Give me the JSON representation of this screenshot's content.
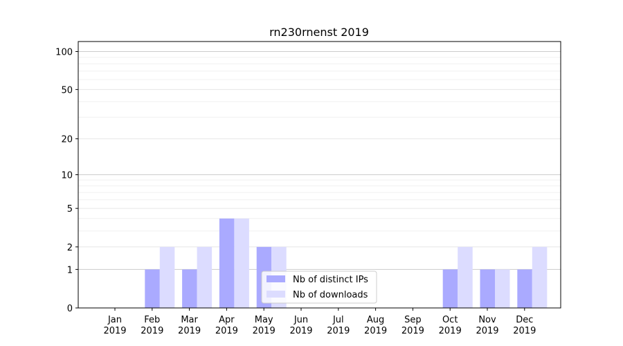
{
  "chart_data": {
    "type": "bar",
    "title": "rn230rnenst 2019",
    "xlabel": "",
    "ylabel": "",
    "yscale": "log1p",
    "ylim": [
      0,
      120
    ],
    "y_ticks": [
      0,
      1,
      2,
      5,
      10,
      20,
      50,
      100
    ],
    "categories": [
      {
        "month": "Jan",
        "year": "2019"
      },
      {
        "month": "Feb",
        "year": "2019"
      },
      {
        "month": "Mar",
        "year": "2019"
      },
      {
        "month": "Apr",
        "year": "2019"
      },
      {
        "month": "May",
        "year": "2019"
      },
      {
        "month": "Jun",
        "year": "2019"
      },
      {
        "month": "Jul",
        "year": "2019"
      },
      {
        "month": "Aug",
        "year": "2019"
      },
      {
        "month": "Sep",
        "year": "2019"
      },
      {
        "month": "Oct",
        "year": "2019"
      },
      {
        "month": "Nov",
        "year": "2019"
      },
      {
        "month": "Dec",
        "year": "2019"
      }
    ],
    "series": [
      {
        "name": "Nb of distinct IPs",
        "color": "#aaaaff",
        "values": [
          0,
          1,
          1,
          4,
          2,
          0,
          0,
          0,
          0,
          1,
          1,
          1
        ]
      },
      {
        "name": "Nb of downloads",
        "color": "#dcdcff",
        "values": [
          0,
          2,
          2,
          4,
          2,
          0,
          0,
          0,
          0,
          2,
          1,
          2
        ]
      }
    ],
    "grid": true,
    "legend_position": "bottom-center"
  }
}
